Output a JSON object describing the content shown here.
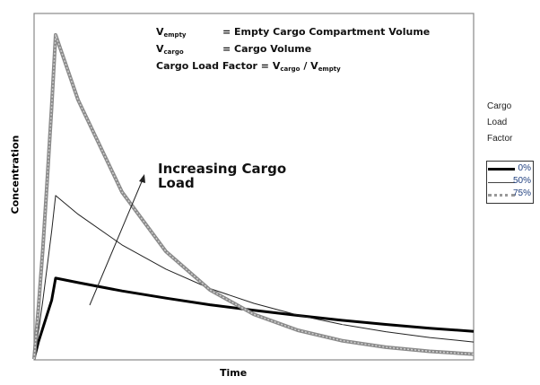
{
  "chart_data": {
    "type": "line",
    "title": "",
    "xlabel": "Time",
    "ylabel": "Concentration",
    "xlim": [
      0,
      100
    ],
    "ylim": [
      0,
      100
    ],
    "grid": false,
    "x": [
      0,
      1,
      2,
      3,
      4,
      4.9,
      10,
      20,
      30,
      40,
      50,
      60,
      70,
      80,
      90,
      100
    ],
    "series": [
      {
        "name": "0%",
        "color": "#000000",
        "values": [
          0,
          5,
          9,
          13,
          17,
          23.4,
          22.1,
          19.7,
          17.6,
          15.7,
          14.1,
          12.6,
          11.2,
          10.0,
          8.9,
          8.0
        ]
      },
      {
        "name": "50%",
        "color": "#000000",
        "values": [
          0,
          8,
          17,
          27,
          37,
          47.3,
          41.9,
          33.0,
          26.0,
          20.4,
          16.1,
          12.7,
          10.0,
          7.9,
          6.2,
          4.9
        ]
      },
      {
        "name": "75%",
        "color": "#999999",
        "values": [
          0,
          15,
          32,
          52,
          73,
          93.8,
          75.0,
          48.3,
          31.1,
          20.0,
          12.9,
          8.3,
          5.3,
          3.4,
          2.2,
          1.4
        ]
      }
    ],
    "legend": {
      "title": [
        "Cargo",
        "Load",
        "Factor"
      ],
      "placement": "right"
    },
    "annotation": {
      "text_line1": "Increasing Cargo",
      "text_line2": "Load"
    },
    "definitions": {
      "v": "V",
      "empty_sub": "empty",
      "cargo_sub": "cargo",
      "empty_def": "= Empty Cargo Compartment Volume",
      "cargo_def": "= Cargo Volume",
      "factor_lhs": "Cargo Load Factor = ",
      "slash": " / "
    }
  }
}
